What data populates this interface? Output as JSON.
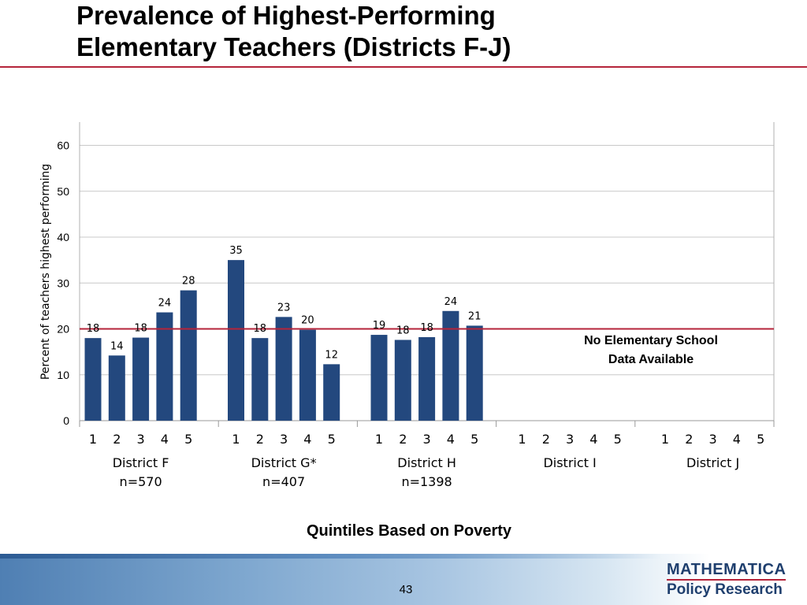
{
  "slide": {
    "title_line1": "Prevalence of Highest-Performing",
    "title_line2": "Elementary Teachers (Districts F-J)",
    "page_number": "43",
    "logo_line1": "MATHEMATICA",
    "logo_line2": "Policy Research"
  },
  "colors": {
    "bar": "#23487e",
    "reference_line": "#b5243b",
    "grid": "#c8c8c8",
    "title_rule": "#b5243b"
  },
  "chart_data": {
    "type": "bar",
    "ylabel": "Percent of teachers highest performing",
    "xlabel": "Quintiles Based on Poverty",
    "ylim": [
      0,
      65
    ],
    "yticks": [
      0,
      10,
      20,
      30,
      40,
      50,
      60
    ],
    "grid": true,
    "reference_line_y": 20,
    "quintile_labels": [
      "1",
      "2",
      "3",
      "4",
      "5"
    ],
    "groups": [
      {
        "name": "District F",
        "n_label": "n=570",
        "values": [
          18,
          14.2,
          18.1,
          23.6,
          28.4
        ],
        "labels": [
          "18",
          "14",
          "18",
          "24",
          "28"
        ]
      },
      {
        "name": "District G*",
        "n_label": "n=407",
        "values": [
          35,
          18,
          22.6,
          19.8,
          12.3
        ],
        "labels": [
          "35",
          "18",
          "23",
          "20",
          "12"
        ]
      },
      {
        "name": "District H",
        "n_label": "n=1398",
        "values": [
          18.7,
          17.6,
          18.2,
          23.9,
          20.7
        ],
        "labels": [
          "19",
          "18",
          "18",
          "24",
          "21"
        ]
      },
      {
        "name": "District I",
        "n_label": "",
        "values": [],
        "labels": []
      },
      {
        "name": "District J",
        "n_label": "",
        "values": [],
        "labels": []
      }
    ],
    "annotation": {
      "line1": "No Elementary School",
      "line2": "Data Available"
    }
  }
}
